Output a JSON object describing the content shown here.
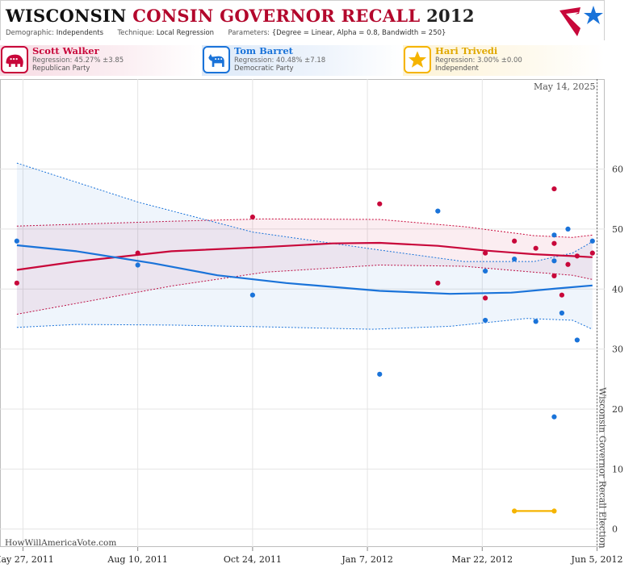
{
  "header": {
    "title_state": "WISCONSIN",
    "title_rest": "CONSIN GOVERNOR RECALL",
    "title_year": "2012",
    "demographic_label": "Demographic:",
    "demographic_value": "Independents",
    "technique_label": "Technique:",
    "technique_value": "Local Regression",
    "parameters_label": "Parameters:",
    "parameters_value": "{Degree = Linear, Alpha = 0.8, Bandwidth = 250}"
  },
  "candidates": [
    {
      "name": "Scott Walker",
      "regression": "Regression: 45.27% ±3.85",
      "party": "Republican Party",
      "color": "#c8073a",
      "icon": "elephant-icon"
    },
    {
      "name": "Tom Barret",
      "regression": "Regression: 40.48% ±7.18",
      "party": "Democratic Party",
      "color": "#1a73d9",
      "icon": "donkey-icon"
    },
    {
      "name": "Hari Trivedi",
      "regression": "Regression: 3.00% ±0.00",
      "party": "Independent",
      "color": "#f5b400",
      "icon": "star-icon"
    }
  ],
  "footer": {
    "site": "HowWillAmericaVote.com"
  },
  "chart_data": {
    "type": "scatter",
    "date_label": "May 14, 2025",
    "election_label": "Wisconsin Governor Recall  Election",
    "ylim": [
      -3,
      75
    ],
    "yticks": [
      0,
      10,
      20,
      30,
      40,
      50,
      60
    ],
    "xlim": [
      "2011-05-12",
      "2012-06-10"
    ],
    "xticks": [
      {
        "date": "2011-05-27",
        "label": "May 27, 2011"
      },
      {
        "date": "2011-08-10",
        "label": "Aug 10, 2011"
      },
      {
        "date": "2011-10-24",
        "label": "Oct 24, 2011"
      },
      {
        "date": "2012-01-07",
        "label": "Jan 7, 2012"
      },
      {
        "date": "2012-03-22",
        "label": "Mar 22, 2012"
      },
      {
        "date": "2012-06-05",
        "label": "Jun 5, 2012"
      }
    ],
    "election_date": "2012-06-05",
    "grid": true,
    "series": [
      {
        "name": "Scott Walker",
        "color": "#c8073a",
        "points": [
          [
            "2011-05-23",
            41
          ],
          [
            "2011-08-10",
            46
          ],
          [
            "2011-10-24",
            52
          ],
          [
            "2012-01-15",
            54.2
          ],
          [
            "2012-02-22",
            41
          ],
          [
            "2012-03-24",
            38.5
          ],
          [
            "2012-03-24",
            46
          ],
          [
            "2012-04-12",
            48
          ],
          [
            "2012-04-26",
            46.8
          ],
          [
            "2012-05-08",
            56.7
          ],
          [
            "2012-05-08",
            47.6
          ],
          [
            "2012-05-08",
            42.2
          ],
          [
            "2012-05-13",
            39
          ],
          [
            "2012-05-17",
            44.1
          ],
          [
            "2012-05-23",
            45.5
          ],
          [
            "2012-06-02",
            46
          ]
        ],
        "fit": [
          [
            "2011-05-23",
            43.2
          ],
          [
            "2011-07-01",
            44.6
          ],
          [
            "2011-09-01",
            46.3
          ],
          [
            "2011-11-01",
            47.0
          ],
          [
            "2011-12-15",
            47.6
          ],
          [
            "2012-01-15",
            47.7
          ],
          [
            "2012-02-22",
            47.2
          ],
          [
            "2012-03-25",
            46.4
          ],
          [
            "2012-04-25",
            45.8
          ],
          [
            "2012-05-20",
            45.5
          ],
          [
            "2012-06-02",
            45.3
          ]
        ],
        "upper": [
          [
            "2011-05-23",
            50.5
          ],
          [
            "2011-09-01",
            51.3
          ],
          [
            "2011-11-01",
            51.7
          ],
          [
            "2012-01-15",
            51.6
          ],
          [
            "2012-03-10",
            50.4
          ],
          [
            "2012-04-25",
            48.9
          ],
          [
            "2012-05-20",
            48.6
          ],
          [
            "2012-06-02",
            49.0
          ]
        ],
        "lower": [
          [
            "2011-05-23",
            35.8
          ],
          [
            "2011-09-01",
            40.5
          ],
          [
            "2011-11-01",
            42.8
          ],
          [
            "2012-01-15",
            44.0
          ],
          [
            "2012-03-10",
            43.8
          ],
          [
            "2012-04-25",
            42.8
          ],
          [
            "2012-05-20",
            42.3
          ],
          [
            "2012-06-02",
            41.6
          ]
        ]
      },
      {
        "name": "Tom Barret",
        "color": "#1a73d9",
        "points": [
          [
            "2011-05-23",
            48
          ],
          [
            "2011-08-10",
            44
          ],
          [
            "2011-10-24",
            39
          ],
          [
            "2012-01-15",
            25.8
          ],
          [
            "2012-02-22",
            53
          ],
          [
            "2012-03-24",
            43
          ],
          [
            "2012-03-24",
            34.8
          ],
          [
            "2012-04-12",
            45
          ],
          [
            "2012-04-26",
            34.6
          ],
          [
            "2012-05-08",
            49
          ],
          [
            "2012-05-08",
            44.7
          ],
          [
            "2012-05-08",
            18.7
          ],
          [
            "2012-05-13",
            36
          ],
          [
            "2012-05-17",
            50
          ],
          [
            "2012-05-23",
            31.5
          ],
          [
            "2012-06-02",
            48
          ]
        ],
        "fit": [
          [
            "2011-05-23",
            47.3
          ],
          [
            "2011-07-01",
            46.3
          ],
          [
            "2011-08-20",
            44.3
          ],
          [
            "2011-10-01",
            42.3
          ],
          [
            "2011-11-15",
            41.0
          ],
          [
            "2012-01-15",
            39.7
          ],
          [
            "2012-03-01",
            39.2
          ],
          [
            "2012-04-10",
            39.4
          ],
          [
            "2012-05-10",
            40.1
          ],
          [
            "2012-06-02",
            40.6
          ]
        ],
        "upper": [
          [
            "2011-05-23",
            61.0
          ],
          [
            "2011-08-10",
            54.5
          ],
          [
            "2011-10-24",
            49.5
          ],
          [
            "2012-01-15",
            46.5
          ],
          [
            "2012-03-10",
            44.6
          ],
          [
            "2012-04-25",
            44.6
          ],
          [
            "2012-05-20",
            46.0
          ],
          [
            "2012-06-02",
            47.9
          ]
        ],
        "lower": [
          [
            "2011-05-23",
            33.6
          ],
          [
            "2011-07-01",
            34.1
          ],
          [
            "2011-09-01",
            34.0
          ],
          [
            "2011-11-01",
            33.7
          ],
          [
            "2012-01-10",
            33.3
          ],
          [
            "2012-03-01",
            33.8
          ],
          [
            "2012-04-20",
            35.1
          ],
          [
            "2012-05-20",
            34.8
          ],
          [
            "2012-06-02",
            33.3
          ]
        ]
      },
      {
        "name": "Hari Trivedi",
        "color": "#f5b400",
        "points": [
          [
            "2012-04-12",
            3
          ],
          [
            "2012-05-08",
            3
          ]
        ],
        "fit": [
          [
            "2012-04-12",
            3
          ],
          [
            "2012-05-08",
            3
          ]
        ]
      }
    ]
  }
}
